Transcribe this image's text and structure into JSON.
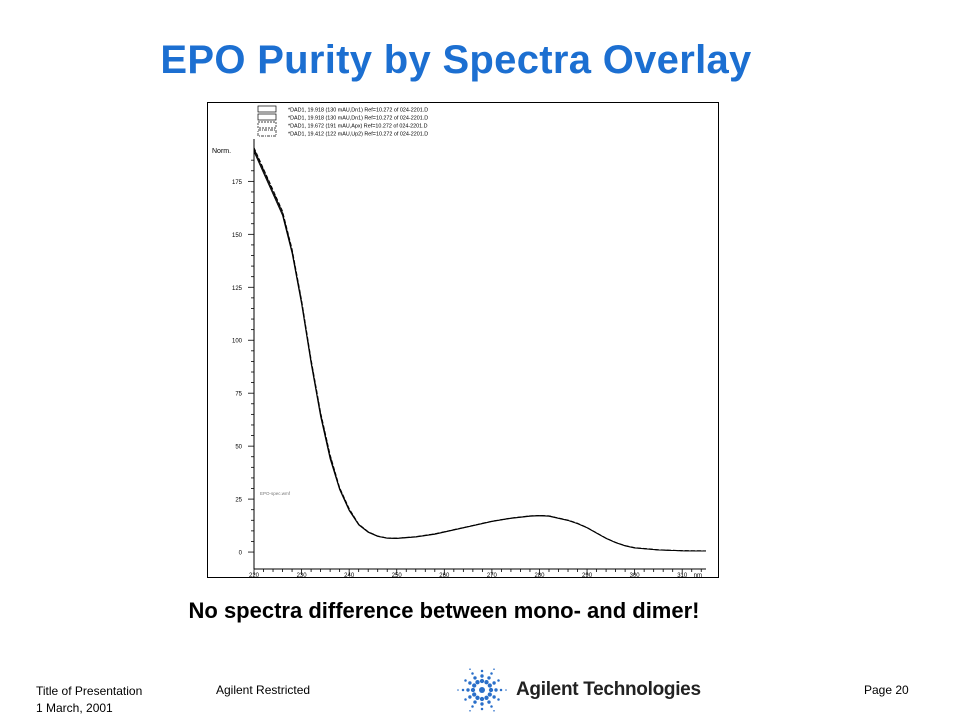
{
  "slide": {
    "title": "EPO Purity by Spectra Overlay",
    "subtitle": "No spectra difference between mono- and dimer!"
  },
  "footer": {
    "presentation_title": "Title of Presentation",
    "date": "1 March, 2001",
    "classification": "Agilent Restricted",
    "page": "Page 20",
    "company": "Agilent Technologies"
  },
  "colors": {
    "title": "#1c6fd1",
    "logo_mark": "#2a6fc9",
    "trace": "#000000"
  },
  "chart_data": {
    "type": "line",
    "ylabel": "Norm.",
    "xunit": "nm",
    "annotation": "EPO-spec.wmf",
    "xlim": [
      220,
      315
    ],
    "ylim": [
      -8,
      195
    ],
    "x_ticks": [
      220,
      230,
      240,
      250,
      260,
      270,
      280,
      290,
      300,
      310
    ],
    "y_ticks": [
      0,
      25,
      50,
      75,
      100,
      125,
      150,
      175
    ],
    "legend_position": "top-left",
    "grid": false,
    "series": [
      {
        "name": "*DAD1, 19.918 (130 mAU,Dn1) Ref=10.272 of 024-2201.D",
        "style": "solid",
        "x": [
          220,
          222,
          224,
          226,
          228,
          230,
          232,
          234,
          236,
          238,
          240,
          242,
          244,
          246,
          248,
          250,
          254,
          258,
          262,
          266,
          270,
          274,
          278,
          280,
          282,
          284,
          286,
          288,
          290,
          292,
          294,
          296,
          298,
          300,
          305,
          310,
          315
        ],
        "y": [
          190,
          180,
          170,
          160,
          142,
          118,
          90,
          65,
          45,
          30,
          20,
          13,
          9.5,
          7.5,
          6.6,
          6.5,
          7.2,
          8.5,
          10.5,
          12.5,
          14.5,
          16,
          17,
          17.2,
          17,
          16,
          15,
          13.5,
          11.5,
          9,
          6.5,
          4.5,
          3,
          2,
          1,
          0.6,
          0.5
        ]
      },
      {
        "name": "*DAD1, 19.918 (130 mAU,Dn1) Ref=10.272 of 024-2201.D",
        "style": "solid",
        "x": [
          220,
          222,
          224,
          226,
          228,
          230,
          232,
          234,
          236,
          238,
          240,
          242,
          244,
          246,
          248,
          250,
          254,
          258,
          262,
          266,
          270,
          274,
          278,
          280,
          282,
          284,
          286,
          288,
          290,
          292,
          294,
          296,
          298,
          300,
          305,
          310,
          315
        ],
        "y": [
          189,
          179,
          169,
          159,
          141,
          117,
          89,
          64,
          44,
          29.5,
          19.5,
          12.8,
          9.3,
          7.4,
          6.5,
          6.4,
          7.1,
          8.4,
          10.4,
          12.4,
          14.4,
          15.9,
          16.9,
          17.1,
          16.9,
          15.9,
          14.9,
          13.4,
          11.4,
          8.9,
          6.4,
          4.4,
          2.9,
          1.9,
          0.9,
          0.6,
          0.5
        ]
      },
      {
        "name": "*DAD1, 19.672 (191 mAU,Apx) Ref=10.272 of 024-2201.D",
        "style": "dash",
        "x": [
          220,
          222,
          224,
          226,
          228,
          230,
          232,
          234,
          236,
          238,
          240,
          242,
          244,
          246,
          248,
          250,
          254,
          258,
          262,
          266,
          270,
          274,
          278,
          280,
          282,
          284,
          286,
          288,
          290,
          292,
          294,
          296,
          298,
          300,
          305,
          310,
          315
        ],
        "y": [
          191,
          181,
          171,
          161,
          143,
          119,
          91,
          66,
          46,
          30.5,
          20.5,
          13.2,
          9.6,
          7.6,
          6.7,
          6.6,
          7.3,
          8.6,
          10.6,
          12.6,
          14.6,
          16.1,
          17.1,
          17.3,
          17.1,
          16.1,
          15.1,
          13.6,
          11.6,
          9.1,
          6.6,
          4.6,
          3.1,
          2.1,
          1.1,
          0.7,
          0.6
        ]
      },
      {
        "name": "*DAD1, 19.412 (122 mAU,Up2) Ref=10.272 of 024-2201.D",
        "style": "dashdot",
        "x": [
          220,
          222,
          224,
          226,
          228,
          230,
          232,
          234,
          236,
          238,
          240,
          242,
          244,
          246,
          248,
          250,
          254,
          258,
          262,
          266,
          270,
          274,
          278,
          280,
          282,
          284,
          286,
          288,
          290,
          292,
          294,
          296,
          298,
          300,
          305,
          310,
          315
        ],
        "y": [
          190.5,
          180.5,
          170.5,
          160.5,
          142.5,
          118.5,
          90.5,
          65.5,
          45.5,
          30.2,
          20.2,
          13.1,
          9.5,
          7.5,
          6.6,
          6.5,
          7.2,
          8.5,
          10.5,
          12.5,
          14.5,
          16,
          17,
          17.2,
          17,
          16,
          15,
          13.5,
          11.5,
          9,
          6.5,
          4.5,
          3,
          2,
          1,
          0.6,
          0.5
        ]
      }
    ]
  }
}
